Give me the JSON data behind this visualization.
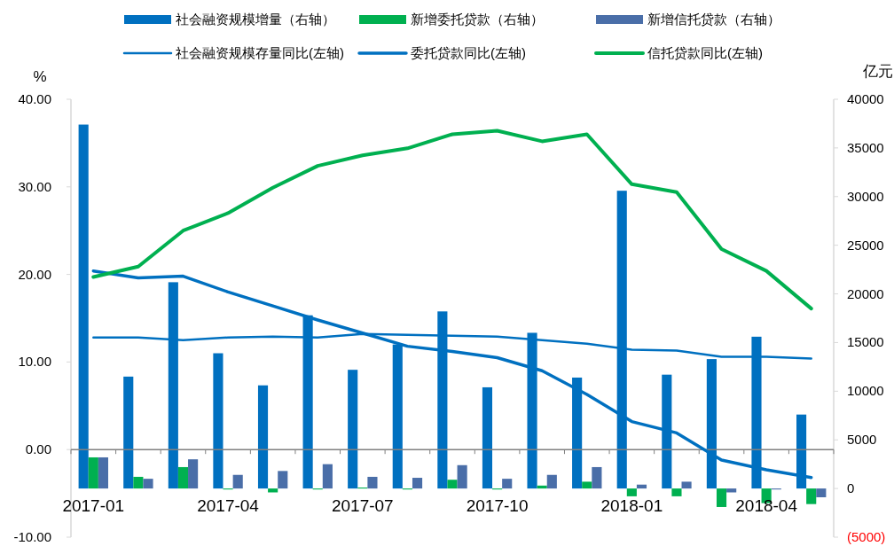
{
  "chart_data": {
    "type": "bar",
    "categories": [
      "2017-01",
      null,
      null,
      "2017-04",
      null,
      null,
      "2017-07",
      null,
      null,
      "2017-10",
      null,
      null,
      "2018-01",
      null,
      null,
      "2018-04",
      null
    ],
    "ylabel": "%",
    "y2label": "亿元",
    "ylim": [
      -10,
      40
    ],
    "yticks": [
      {
        "value": -10,
        "label": "-10.00"
      },
      {
        "value": 0,
        "label": "0.00"
      },
      {
        "value": 10,
        "label": "10.00"
      },
      {
        "value": 20,
        "label": "20.00"
      },
      {
        "value": 30,
        "label": "30.00"
      },
      {
        "value": 40,
        "label": "40.00"
      }
    ],
    "y2lim": [
      -5000,
      40000
    ],
    "y2ticks": [
      {
        "value": -5000,
        "label": "(5000)"
      },
      0,
      5000,
      10000,
      15000,
      20000,
      25000,
      30000,
      35000,
      40000
    ],
    "legend": "top",
    "series": [
      {
        "name": "社会融资规模增量（右轴）",
        "axis": "y2",
        "color": "#0070c0",
        "values": [
          37400,
          11500,
          21200,
          13900,
          10600,
          17800,
          12200,
          14800,
          18200,
          10400,
          16000,
          11400,
          30600,
          11700,
          13300,
          15600,
          7600
        ]
      },
      {
        "name": "新增委托贷款（右轴）",
        "axis": "y2",
        "color": "#00b050",
        "values": [
          3200,
          1200,
          2200,
          -100,
          -400,
          -100,
          100,
          -100,
          900,
          -100,
          300,
          700,
          -800,
          -800,
          -1900,
          -1500,
          -1600
        ]
      },
      {
        "name": "新增信托贷款（右轴）",
        "axis": "y2",
        "color": "#4a6ea8",
        "values": [
          3200,
          1000,
          3000,
          1400,
          1800,
          2500,
          1200,
          1100,
          2400,
          1000,
          1400,
          2200,
          400,
          700,
          -400,
          -100,
          -900
        ]
      },
      {
        "name": "社会融资规模存量同比(左轴)",
        "type": "line",
        "color": "#0070c0",
        "values": [
          12.8,
          12.8,
          12.5,
          12.8,
          12.9,
          12.8,
          13.2,
          13.1,
          13.0,
          12.9,
          12.5,
          12.1,
          11.4,
          11.3,
          10.6,
          10.6,
          10.4
        ]
      },
      {
        "name": "委托贷款同比(左轴)",
        "type": "line",
        "color": "#0070c0",
        "values": [
          20.4,
          19.6,
          19.8,
          18.0,
          16.4,
          14.8,
          13.3,
          11.8,
          11.2,
          10.5,
          9.0,
          6.3,
          3.2,
          1.9,
          -1.2,
          -2.3,
          -3.2
        ]
      },
      {
        "name": "信托贷款同比(左轴)",
        "type": "line",
        "color": "#00b050",
        "values": [
          19.7,
          20.9,
          25.0,
          27.0,
          29.9,
          32.4,
          33.6,
          34.4,
          36.0,
          36.4,
          35.2,
          36.0,
          30.3,
          29.4,
          22.9,
          20.4,
          16.1
        ]
      }
    ]
  }
}
